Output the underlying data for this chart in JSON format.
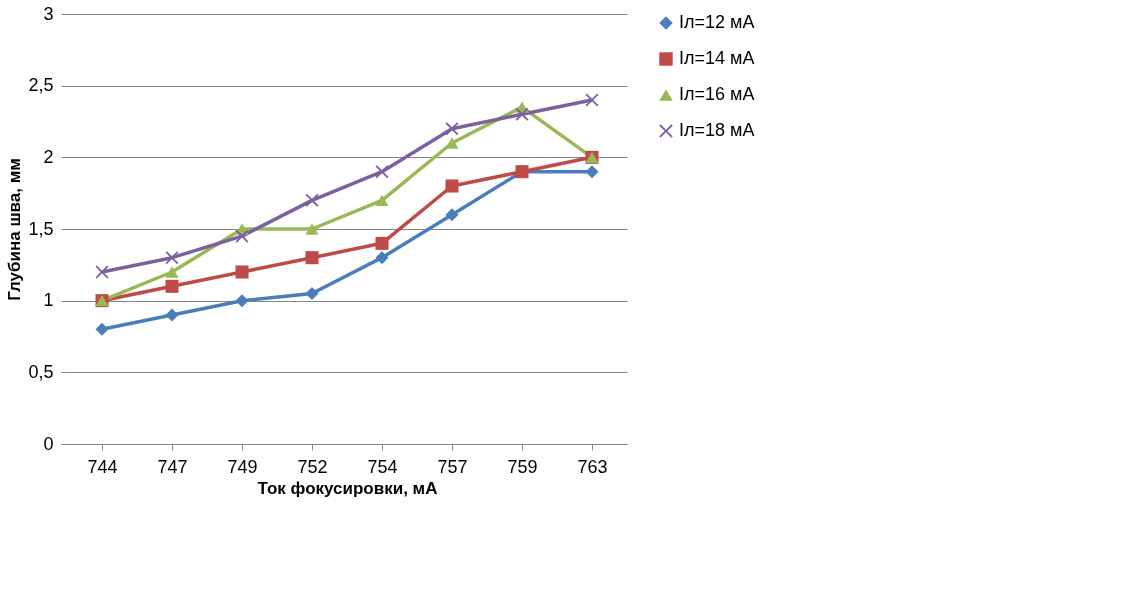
{
  "chart_data": {
    "type": "line",
    "xlabel": "Ток фокусировки, мА",
    "ylabel": "Глубина шва, мм",
    "categories": [
      "744",
      "747",
      "749",
      "752",
      "754",
      "757",
      "759",
      "763"
    ],
    "series": [
      {
        "name": "Iл=12 мА",
        "color": "#4a7ebb",
        "marker": "diamond",
        "values": [
          0.8,
          0.9,
          1.0,
          1.05,
          1.3,
          1.6,
          1.9,
          1.9
        ]
      },
      {
        "name": "Iл=14 мА",
        "color": "#be4b48",
        "marker": "square",
        "values": [
          1.0,
          1.1,
          1.2,
          1.3,
          1.4,
          1.8,
          1.9,
          2.0
        ]
      },
      {
        "name": "Iл=16 мА",
        "color": "#98b954",
        "marker": "triangle",
        "values": [
          1.0,
          1.2,
          1.5,
          1.5,
          1.7,
          2.1,
          2.35,
          2.0
        ]
      },
      {
        "name": "Iл=18 мА",
        "color": "#7d60a0",
        "marker": "cross",
        "values": [
          1.2,
          1.3,
          1.45,
          1.7,
          1.9,
          2.2,
          2.3,
          2.4
        ]
      }
    ],
    "ylim": [
      0,
      3
    ],
    "yticks": [
      {
        "value": 0,
        "label": "0"
      },
      {
        "value": 0.5,
        "label": "0,5"
      },
      {
        "value": 1,
        "label": "1"
      },
      {
        "value": 1.5,
        "label": "1,5"
      },
      {
        "value": 2,
        "label": "2"
      },
      {
        "value": 2.5,
        "label": "2,5"
      },
      {
        "value": 3,
        "label": "3"
      }
    ],
    "grid": "y",
    "legend": "right",
    "line_style": "solid"
  }
}
